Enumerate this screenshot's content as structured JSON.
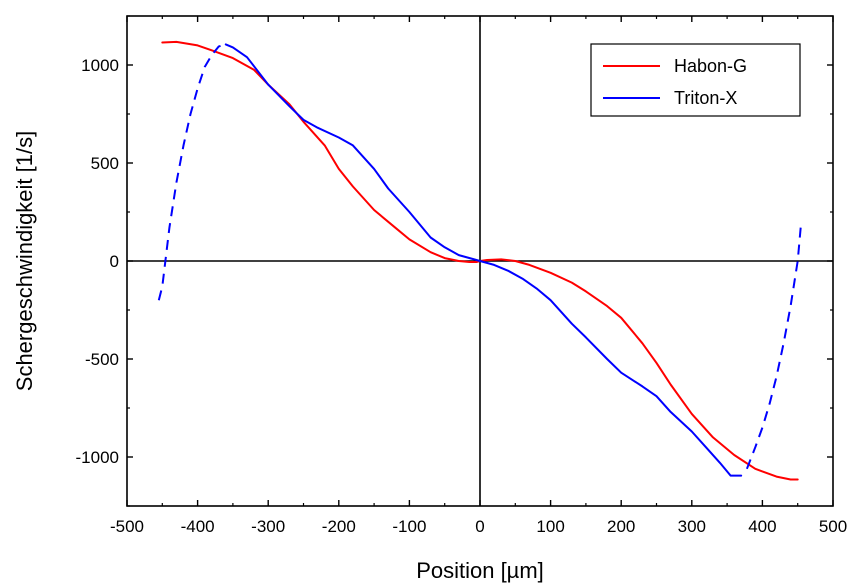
{
  "chart_data": {
    "type": "line",
    "xlabel": "Position [µm]",
    "ylabel": "Schergeschwindigkeit [1/s]",
    "xlim": [
      -500,
      500
    ],
    "ylim": [
      -1250,
      1250
    ],
    "xticks": [
      -500,
      -400,
      -300,
      -200,
      -100,
      0,
      100,
      200,
      300,
      400,
      500
    ],
    "yticks": [
      -1000,
      -500,
      0,
      500,
      1000
    ],
    "xtick_labels": [
      "-500",
      "-400",
      "-300",
      "-200",
      "-100",
      "0",
      "100",
      "200",
      "300",
      "400",
      "500"
    ],
    "ytick_labels": [
      "-1000",
      "-500",
      "0",
      "500",
      "1000"
    ],
    "grid": false,
    "zero_lines": true,
    "legend_position": "top-right",
    "series": [
      {
        "name": "Habon-G",
        "color": "#ff0000",
        "dash": "solid",
        "points": [
          [
            -450,
            1115
          ],
          [
            -430,
            1118
          ],
          [
            -400,
            1100
          ],
          [
            -380,
            1075
          ],
          [
            -350,
            1035
          ],
          [
            -320,
            975
          ],
          [
            -300,
            900
          ],
          [
            -270,
            800
          ],
          [
            -250,
            710
          ],
          [
            -220,
            590
          ],
          [
            -200,
            470
          ],
          [
            -180,
            380
          ],
          [
            -150,
            260
          ],
          [
            -120,
            170
          ],
          [
            -100,
            110
          ],
          [
            -70,
            45
          ],
          [
            -50,
            15
          ],
          [
            -30,
            0
          ],
          [
            -15,
            -5
          ],
          [
            -5,
            -5
          ],
          [
            0,
            0
          ],
          [
            10,
            5
          ],
          [
            30,
            8
          ],
          [
            50,
            0
          ],
          [
            70,
            -20
          ],
          [
            100,
            -60
          ],
          [
            130,
            -110
          ],
          [
            150,
            -155
          ],
          [
            180,
            -230
          ],
          [
            200,
            -290
          ],
          [
            230,
            -420
          ],
          [
            250,
            -520
          ],
          [
            270,
            -630
          ],
          [
            300,
            -780
          ],
          [
            330,
            -900
          ],
          [
            360,
            -990
          ],
          [
            390,
            -1060
          ],
          [
            420,
            -1100
          ],
          [
            440,
            -1115
          ],
          [
            450,
            -1115
          ]
        ]
      },
      {
        "name": "Triton-X",
        "color": "#0000ff",
        "dash": "solid",
        "points": [
          [
            -360,
            1105
          ],
          [
            -350,
            1090
          ],
          [
            -330,
            1040
          ],
          [
            -300,
            900
          ],
          [
            -270,
            790
          ],
          [
            -250,
            720
          ],
          [
            -230,
            680
          ],
          [
            -200,
            630
          ],
          [
            -180,
            590
          ],
          [
            -150,
            470
          ],
          [
            -130,
            370
          ],
          [
            -100,
            250
          ],
          [
            -70,
            120
          ],
          [
            -50,
            70
          ],
          [
            -30,
            30
          ],
          [
            -10,
            10
          ],
          [
            0,
            0
          ],
          [
            20,
            -20
          ],
          [
            40,
            -50
          ],
          [
            60,
            -90
          ],
          [
            80,
            -140
          ],
          [
            100,
            -200
          ],
          [
            130,
            -320
          ],
          [
            150,
            -390
          ],
          [
            180,
            -500
          ],
          [
            200,
            -570
          ],
          [
            230,
            -640
          ],
          [
            250,
            -690
          ],
          [
            270,
            -770
          ],
          [
            300,
            -870
          ],
          [
            320,
            -950
          ],
          [
            340,
            -1030
          ],
          [
            355,
            -1095
          ],
          [
            370,
            -1095
          ]
        ]
      },
      {
        "name": "",
        "color": "#0000ff",
        "dash": "dashed",
        "points": [
          [
            -455,
            -200
          ],
          [
            -450,
            -130
          ],
          [
            -440,
            170
          ],
          [
            -430,
            400
          ],
          [
            -420,
            590
          ],
          [
            -410,
            750
          ],
          [
            -400,
            880
          ],
          [
            -390,
            990
          ],
          [
            -380,
            1050
          ],
          [
            -370,
            1095
          ],
          [
            -360,
            1105
          ]
        ]
      },
      {
        "name": "",
        "color": "#0000ff",
        "dash": "dashed",
        "points": [
          [
            378,
            -1060
          ],
          [
            390,
            -950
          ],
          [
            400,
            -850
          ],
          [
            410,
            -730
          ],
          [
            420,
            -590
          ],
          [
            430,
            -420
          ],
          [
            440,
            -230
          ],
          [
            450,
            0
          ],
          [
            455,
            200
          ]
        ]
      }
    ]
  }
}
